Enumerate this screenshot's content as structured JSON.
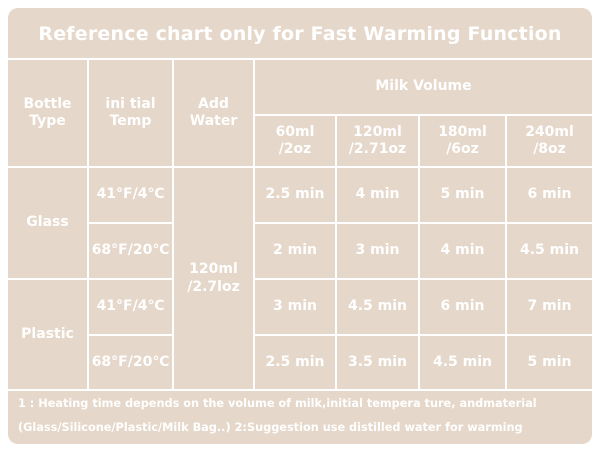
{
  "title": "Reference chart only for Fast Warming Function",
  "headers": {
    "bottle_type": "Bottle\nType",
    "initial_temp": "ini tial\nTemp",
    "add_water": "Add\nWater",
    "milk_volume": "Milk Volume",
    "volumes": [
      "60ml\n/2oz",
      "120ml\n/2.71oz",
      "180ml\n/6oz",
      "240ml\n/8oz"
    ]
  },
  "bottle_types": [
    "Glass",
    "Plastic"
  ],
  "temps": [
    "41°F/4℃",
    "68°F/20℃",
    "41°F/4℃",
    "68°F/20℃"
  ],
  "add_water_value": "120ml\n/2.7loz",
  "rows": [
    [
      "2.5 min",
      "4 min",
      "5 min",
      "6 min"
    ],
    [
      "2 min",
      "3 min",
      "4 min",
      "4.5 min"
    ],
    [
      "3 min",
      "4.5 min",
      "6 min",
      "7 min"
    ],
    [
      "2.5 min",
      "3.5 min",
      "4.5 min",
      "5 min"
    ]
  ],
  "notes": [
    "1 : Heating time depends on the volume of milk,initial tempera ture, andmaterial",
    "(Glass/Silicone/Plastic/Milk Bag..)  2:Suggestion use distilled water for warming"
  ],
  "colors": {
    "background": "#e5d7c9",
    "lines": "#ffffff",
    "text": "#ffffff"
  }
}
